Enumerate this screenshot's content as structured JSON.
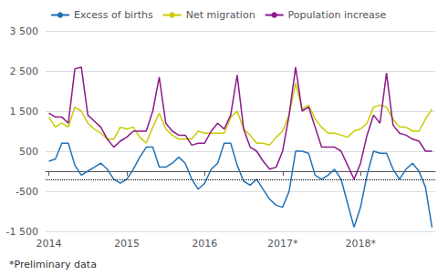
{
  "chart_data": {
    "type": "line",
    "categories": [
      "2014",
      null,
      null,
      null,
      null,
      null,
      null,
      null,
      null,
      null,
      null,
      null,
      "2015",
      null,
      null,
      null,
      null,
      null,
      null,
      null,
      null,
      null,
      null,
      null,
      "2016",
      null,
      null,
      null,
      null,
      null,
      null,
      null,
      null,
      null,
      null,
      null,
      "2017*",
      null,
      null,
      null,
      null,
      null,
      null,
      null,
      null,
      null,
      null,
      null,
      "2018*",
      null,
      null,
      null,
      null,
      null,
      null,
      null,
      null,
      null,
      null,
      null
    ],
    "series": [
      {
        "name": "Excess of births",
        "color": "#2171b5",
        "values": [
          250,
          300,
          700,
          700,
          150,
          -100,
          0,
          100,
          200,
          50,
          -200,
          -300,
          -200,
          50,
          350,
          600,
          600,
          100,
          100,
          200,
          350,
          200,
          -200,
          -450,
          -300,
          50,
          200,
          700,
          700,
          150,
          -250,
          -350,
          -200,
          -450,
          -700,
          -850,
          -900,
          -500,
          500,
          500,
          450,
          -100,
          -200,
          -100,
          50,
          -200,
          -800,
          -1400,
          -900,
          -100,
          500,
          450,
          450,
          50,
          -200,
          50,
          200,
          0,
          -400,
          -1400
        ]
      },
      {
        "name": "Net migration",
        "color": "#c8cc00",
        "values": [
          1350,
          1100,
          1200,
          1100,
          1600,
          1500,
          1200,
          1050,
          950,
          800,
          800,
          1100,
          1050,
          1100,
          850,
          700,
          1100,
          1450,
          1050,
          900,
          800,
          800,
          800,
          1000,
          950,
          950,
          950,
          950,
          1350,
          1500,
          1050,
          900,
          700,
          700,
          650,
          850,
          1000,
          1400,
          2200,
          1550,
          1650,
          1300,
          1100,
          950,
          950,
          900,
          850,
          1000,
          1050,
          1200,
          1600,
          1650,
          1600,
          1300,
          1100,
          1100,
          1000,
          1000,
          1300,
          1550
        ]
      },
      {
        "name": "Population increase",
        "color": "#8b1a8b",
        "values": [
          1450,
          1350,
          1350,
          1200,
          2550,
          2600,
          1400,
          1250,
          1100,
          800,
          600,
          750,
          850,
          1000,
          1000,
          1000,
          1500,
          2350,
          1200,
          1000,
          900,
          900,
          650,
          700,
          700,
          1000,
          1200,
          1050,
          1400,
          2400,
          1050,
          600,
          500,
          250,
          50,
          100,
          500,
          1400,
          2600,
          1500,
          1600,
          1100,
          600,
          600,
          600,
          500,
          150,
          -200,
          200,
          900,
          1400,
          1200,
          2450,
          1150,
          950,
          900,
          800,
          750,
          500,
          500
        ]
      }
    ],
    "ylim": [
      -1500,
      3500
    ],
    "yticks": [
      {
        "value": -1500,
        "label": "-1 500"
      },
      -500,
      500,
      {
        "value": 1500,
        "label": "1 500"
      },
      {
        "value": 2500,
        "label": "2 500"
      },
      {
        "value": 3500,
        "label": "3 500"
      }
    ],
    "reference_line": {
      "y": -200,
      "color": "#000000",
      "line_style": "dotted"
    },
    "annotations": [
      "*Preliminary data"
    ],
    "grid": true,
    "legend": "upper left"
  }
}
